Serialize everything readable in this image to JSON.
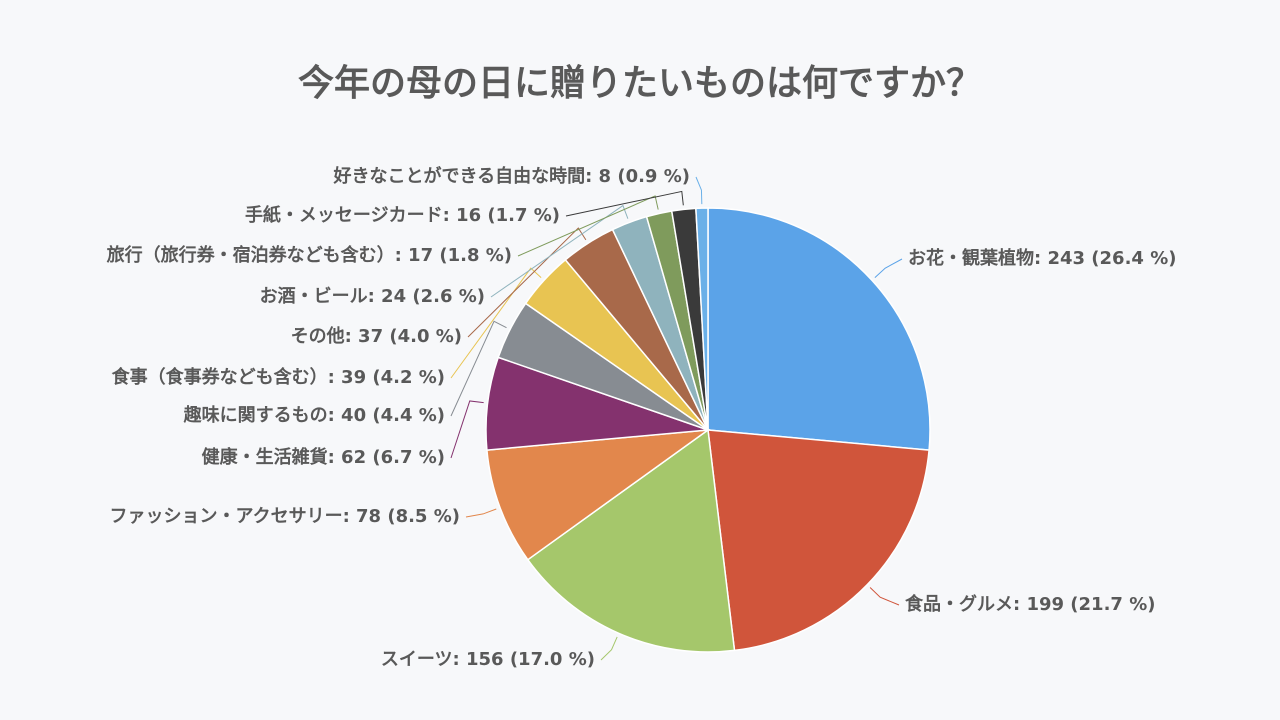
{
  "chart_data": {
    "type": "pie",
    "title": "今年の母の日に贈りたいものは何ですか？",
    "labels": [
      "お花・観葉植物: 243 (26.4 %)",
      "食品・グルメ: 199 (21.7 %)",
      "スイーツ: 156 (17.0 %)",
      "ファッション・アクセサリー: 78 (8.5 %)",
      "健康・生活雑貨: 62 (6.7 %)",
      "趣味に関するもの: 40 (4.4 %)",
      "食事（食事券なども含む）: 39 (4.2 %)",
      "その他: 37 (4.0 %)",
      "お酒・ビール: 24 (2.6 %)",
      "旅行（旅行券・宿泊券なども含む）: 17 (1.8 %)",
      "手紙・メッセージカード: 16 (1.7 %)",
      "好きなことができる自由な時間: 8 (0.9 %)"
    ],
    "values": [
      243,
      199,
      156,
      78,
      62,
      40,
      39,
      37,
      24,
      17,
      16,
      8
    ],
    "colors": [
      "#5ba3e8",
      "#d0553b",
      "#a5c76b",
      "#e2874c",
      "#84326e",
      "#878c92",
      "#e8c452",
      "#a8694a",
      "#8fb3bd",
      "#7f9b5c",
      "#3a3a3a",
      "#6ab0e8"
    ]
  }
}
